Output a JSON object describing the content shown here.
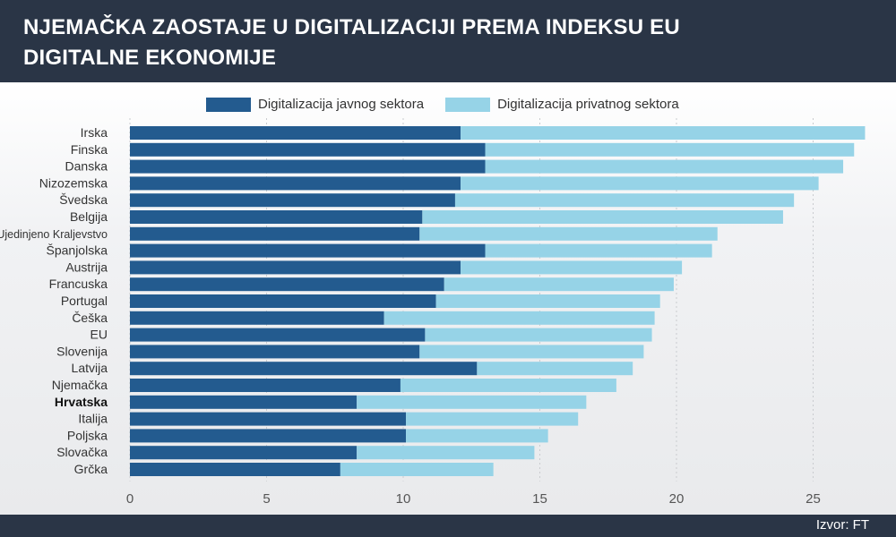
{
  "header": {
    "title": "NJEMAČKA ZAOSTAJE U DIGITALIZACIJI PREMA INDEKSU EU DIGITALNE EKONOMIJE"
  },
  "footer": {
    "source": "Izvor: FT"
  },
  "colors": {
    "public": "#235b8f",
    "private": "#96d3e7",
    "header_bg": "#2a3546"
  },
  "chart_data": {
    "type": "bar",
    "orientation": "horizontal",
    "stacked": true,
    "categories": [
      "Irska",
      "Finska",
      "Danska",
      "Nizozemska",
      "Švedska",
      "Belgija",
      "Ujedinjeno Kraljevstvo",
      "Španjolska",
      "Austrija",
      "Francuska",
      "Portugal",
      "Češka",
      "EU",
      "Slovenija",
      "Latvija",
      "Njemačka",
      "Hrvatska",
      "Italija",
      "Poljska",
      "Slovačka",
      "Grčka"
    ],
    "highlight": "Hrvatska",
    "series": [
      {
        "name": "Digitalizacija javnog sektora",
        "values": [
          12.1,
          13.0,
          13.0,
          12.1,
          11.9,
          10.7,
          10.6,
          13.0,
          12.1,
          11.5,
          11.2,
          9.3,
          10.8,
          10.6,
          12.7,
          9.9,
          8.3,
          10.1,
          10.1,
          8.3,
          7.7
        ]
      },
      {
        "name": "Digitalizacija privatnog sektora",
        "values": [
          14.8,
          13.5,
          13.1,
          13.1,
          12.4,
          13.2,
          10.9,
          8.3,
          8.1,
          8.4,
          8.2,
          9.9,
          8.3,
          8.2,
          5.7,
          7.9,
          8.4,
          6.3,
          5.2,
          6.5,
          5.6
        ]
      }
    ],
    "xlim": [
      0,
      27
    ],
    "xticks": [
      0,
      5,
      10,
      15,
      20,
      25
    ],
    "xlabel": "",
    "ylabel": "",
    "grid": "vertical",
    "legend_position": "top"
  }
}
